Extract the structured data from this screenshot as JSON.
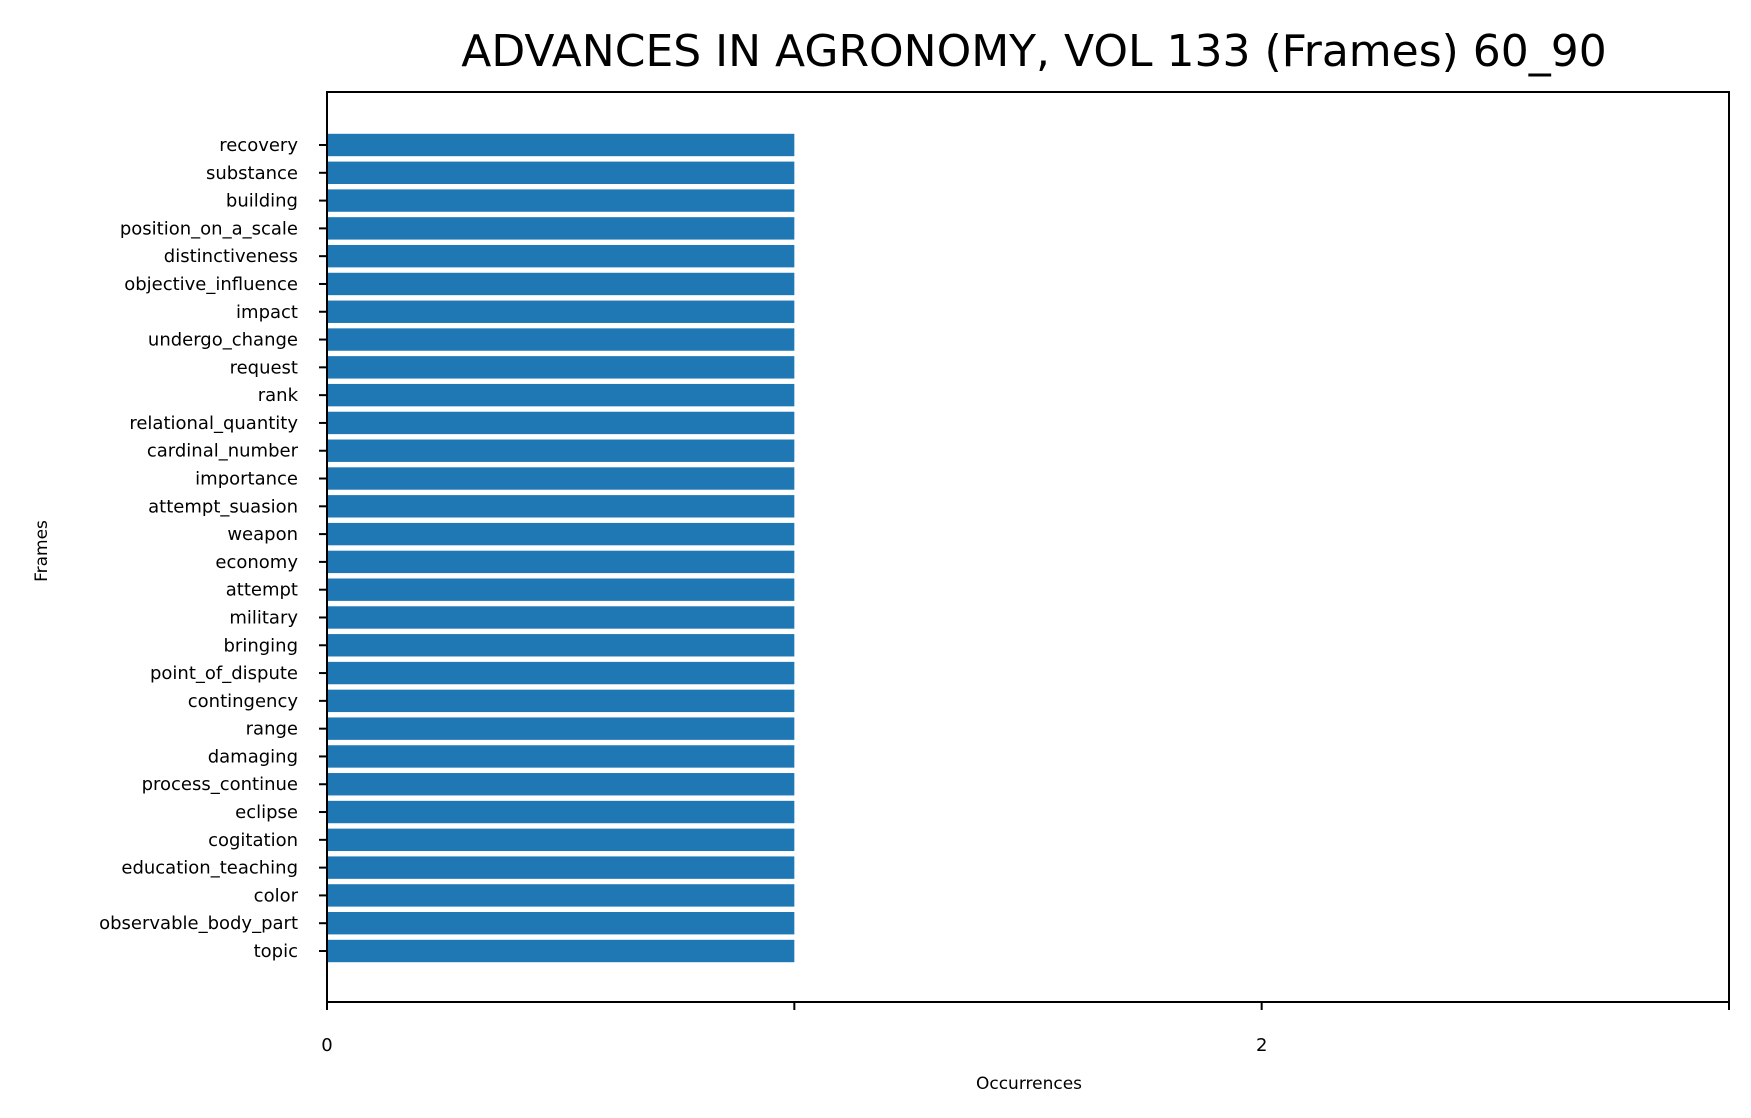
{
  "chart_data": {
    "type": "bar",
    "orientation": "horizontal",
    "title": "ADVANCES IN AGRONOMY, VOL 133 (Frames) 60_90",
    "xlabel": "Occurrences",
    "ylabel": "Frames",
    "xlim": [
      0,
      3
    ],
    "x_ticks": [
      0,
      1,
      2,
      3
    ],
    "x_tick_labels": [
      "0",
      "",
      "2",
      ""
    ],
    "grid": false,
    "categories": [
      "recovery",
      "substance",
      "building",
      "position_on_a_scale",
      "distinctiveness",
      "objective_influence",
      "impact",
      "undergo_change",
      "request",
      "rank",
      "relational_quantity",
      "cardinal_number",
      "importance",
      "attempt_suasion",
      "weapon",
      "economy",
      "attempt",
      "military",
      "bringing",
      "point_of_dispute",
      "contingency",
      "range",
      "damaging",
      "process_continue",
      "eclipse",
      "cogitation",
      "education_teaching",
      "color",
      "observable_body_part",
      "topic"
    ],
    "values": [
      1,
      1,
      1,
      1,
      1,
      1,
      1,
      1,
      1,
      1,
      1,
      1,
      1,
      1,
      1,
      1,
      1,
      1,
      1,
      1,
      1,
      1,
      1,
      1,
      1,
      1,
      1,
      1,
      1,
      1
    ],
    "bar_color": "#1f77b4"
  }
}
